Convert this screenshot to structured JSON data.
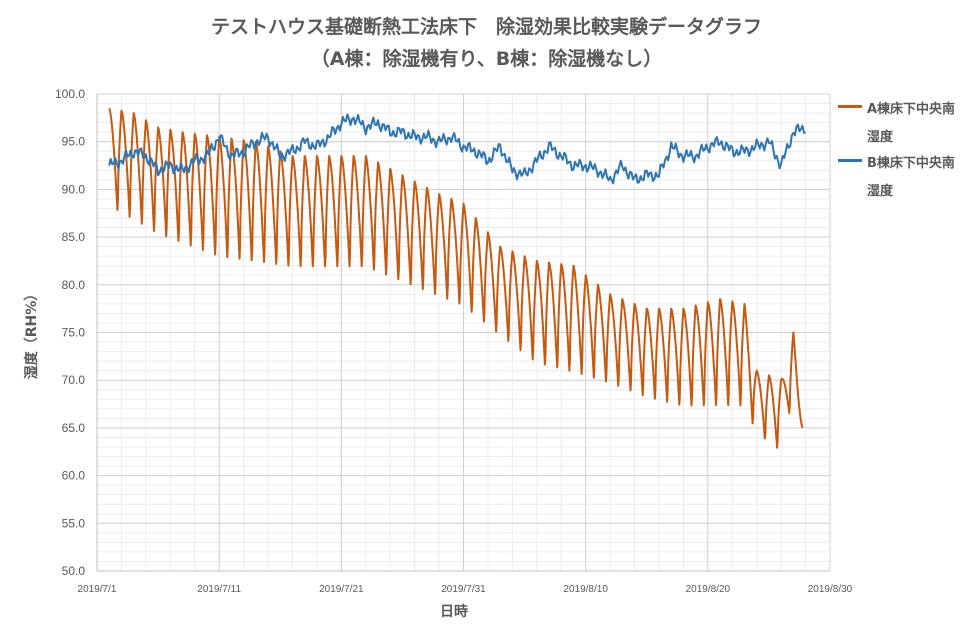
{
  "chart_data": {
    "type": "line",
    "title": "テストハウス基礎断熱工法床下　除湿効果比較実験データグラフ",
    "subtitle": "（A棟：除湿機有り、B棟：除湿機なし）",
    "xlabel": "日時",
    "ylabel": "湿度（RH%）",
    "xlim": [
      "2019/7/1",
      "2019/8/30"
    ],
    "ylim": [
      50.0,
      100.0
    ],
    "x_ticks": [
      "2019/7/1",
      "2019/7/11",
      "2019/7/21",
      "2019/7/31",
      "2019/8/10",
      "2019/8/20",
      "2019/8/30"
    ],
    "y_ticks": [
      "50.0",
      "55.0",
      "60.0",
      "65.0",
      "70.0",
      "75.0",
      "80.0",
      "85.0",
      "90.0",
      "95.0",
      "100.0"
    ],
    "grid": true,
    "legend_position": "right",
    "series": [
      {
        "name": "A棟床下中央南湿度",
        "color": "#C55A11",
        "pattern": "daily oscillation",
        "daily_max": [
          [
            "2019/7/2",
            98.5
          ],
          [
            "2019/7/4",
            98.0
          ],
          [
            "2019/7/6",
            96.5
          ],
          [
            "2019/7/8",
            96.0
          ],
          [
            "2019/7/11",
            95.5
          ],
          [
            "2019/7/14",
            95.0
          ],
          [
            "2019/7/17",
            93.5
          ],
          [
            "2019/7/20",
            93.5
          ],
          [
            "2019/7/23",
            93.5
          ],
          [
            "2019/7/26",
            91.5
          ],
          [
            "2019/7/29",
            89.5
          ],
          [
            "2019/7/31",
            88.5
          ],
          [
            "2019/8/3",
            84.0
          ],
          [
            "2019/8/6",
            82.5
          ],
          [
            "2019/8/9",
            82.0
          ],
          [
            "2019/8/12",
            79.0
          ],
          [
            "2019/8/15",
            77.5
          ],
          [
            "2019/8/18",
            77.5
          ],
          [
            "2019/8/21",
            78.5
          ],
          [
            "2019/8/23",
            78.0
          ],
          [
            "2019/8/24",
            71.0
          ],
          [
            "2019/8/26",
            70.0
          ],
          [
            "2019/8/27",
            75.0
          ],
          [
            "2019/8/27 18:00",
            65.0
          ]
        ],
        "daily_min": [
          [
            "2019/7/2",
            87.5
          ],
          [
            "2019/7/4",
            86.0
          ],
          [
            "2019/7/6",
            84.5
          ],
          [
            "2019/7/8",
            83.5
          ],
          [
            "2019/7/11",
            82.0
          ],
          [
            "2019/7/14",
            81.5
          ],
          [
            "2019/7/17",
            81.0
          ],
          [
            "2019/7/20",
            81.0
          ],
          [
            "2019/7/23",
            81.0
          ],
          [
            "2019/7/26",
            79.5
          ],
          [
            "2019/7/29",
            78.0
          ],
          [
            "2019/7/31",
            77.0
          ],
          [
            "2019/8/3",
            74.0
          ],
          [
            "2019/8/6",
            71.0
          ],
          [
            "2019/8/9",
            70.0
          ],
          [
            "2019/8/12",
            69.0
          ],
          [
            "2019/8/15",
            67.5
          ],
          [
            "2019/8/18",
            66.5
          ],
          [
            "2019/8/21",
            66.5
          ],
          [
            "2019/8/23",
            66.5
          ],
          [
            "2019/8/24",
            64.0
          ],
          [
            "2019/8/26",
            62.0
          ],
          [
            "2019/8/27",
            68.0
          ],
          [
            "2019/8/27 18:00",
            65.0
          ]
        ]
      },
      {
        "name": "B棟床下中央南湿度",
        "color": "#2E75B6",
        "values": [
          [
            "2019/7/2",
            92.5
          ],
          [
            "2019/7/3",
            93.0
          ],
          [
            "2019/7/4",
            94.0
          ],
          [
            "2019/7/5",
            93.5
          ],
          [
            "2019/7/6",
            92.0
          ],
          [
            "2019/7/7",
            92.5
          ],
          [
            "2019/7/8",
            92.0
          ],
          [
            "2019/7/9",
            93.0
          ],
          [
            "2019/7/10",
            93.5
          ],
          [
            "2019/7/11",
            95.5
          ],
          [
            "2019/7/12",
            93.5
          ],
          [
            "2019/7/13",
            94.0
          ],
          [
            "2019/7/14",
            95.0
          ],
          [
            "2019/7/15",
            95.5
          ],
          [
            "2019/7/16",
            93.5
          ],
          [
            "2019/7/17",
            94.0
          ],
          [
            "2019/7/18",
            95.0
          ],
          [
            "2019/7/19",
            94.5
          ],
          [
            "2019/7/20",
            95.5
          ],
          [
            "2019/7/21",
            97.0
          ],
          [
            "2019/7/22",
            97.5
          ],
          [
            "2019/7/23",
            96.5
          ],
          [
            "2019/7/24",
            97.0
          ],
          [
            "2019/7/25",
            96.0
          ],
          [
            "2019/7/26",
            96.0
          ],
          [
            "2019/7/27",
            95.5
          ],
          [
            "2019/7/28",
            95.5
          ],
          [
            "2019/7/29",
            95.0
          ],
          [
            "2019/7/30",
            95.5
          ],
          [
            "2019/7/31",
            94.5
          ],
          [
            "2019/8/1",
            94.0
          ],
          [
            "2019/8/2",
            93.0
          ],
          [
            "2019/8/3",
            94.5
          ],
          [
            "2019/8/4",
            92.0
          ],
          [
            "2019/8/5",
            91.5
          ],
          [
            "2019/8/6",
            93.0
          ],
          [
            "2019/8/7",
            94.5
          ],
          [
            "2019/8/8",
            93.5
          ],
          [
            "2019/8/9",
            92.5
          ],
          [
            "2019/8/10",
            92.5
          ],
          [
            "2019/8/11",
            92.0
          ],
          [
            "2019/8/12",
            91.0
          ],
          [
            "2019/8/13",
            92.5
          ],
          [
            "2019/8/14",
            91.0
          ],
          [
            "2019/8/15",
            91.5
          ],
          [
            "2019/8/16",
            91.5
          ],
          [
            "2019/8/17",
            94.5
          ],
          [
            "2019/8/18",
            93.5
          ],
          [
            "2019/8/19",
            93.5
          ],
          [
            "2019/8/20",
            94.5
          ],
          [
            "2019/8/21",
            95.0
          ],
          [
            "2019/8/22",
            94.0
          ],
          [
            "2019/8/23",
            94.0
          ],
          [
            "2019/8/24",
            94.5
          ],
          [
            "2019/8/25",
            95.0
          ],
          [
            "2019/8/26",
            92.5
          ],
          [
            "2019/8/27",
            96.0
          ],
          [
            "2019/8/28",
            96.5
          ]
        ]
      }
    ]
  }
}
